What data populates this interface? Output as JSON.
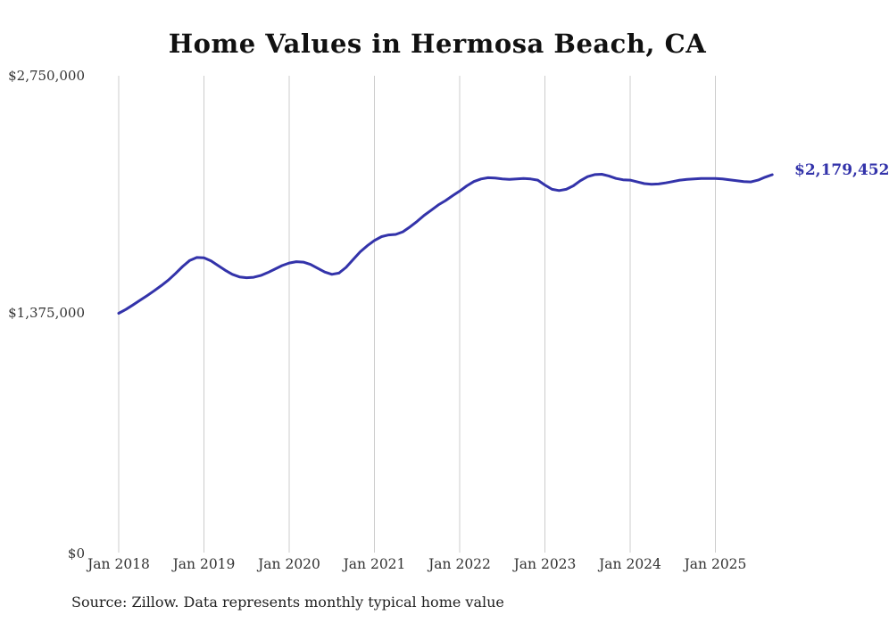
{
  "title": "Home Values in Hermosa Beach, CA",
  "source": "Source: Zillow. Data represents monthly typical home value",
  "end_label": "$2,179,452",
  "colors": {
    "line": "#3333aa",
    "grid": "#cccccc",
    "text": "#333333"
  },
  "y_axis": {
    "labels": [
      "$2,750,000",
      "$1,375,000",
      "$0"
    ],
    "max": 2750000
  },
  "x_axis": {
    "labels": [
      "Jan 2018",
      "Jan 2019",
      "Jan 2020",
      "Jan 2021",
      "Jan 2022",
      "Jan 2023",
      "Jan 2024",
      "Jan 2025"
    ]
  },
  "chart_data": {
    "type": "line",
    "title": "Home Values in Hermosa Beach, CA",
    "series_name": "Monthly typical home value",
    "x_start": "2018-01",
    "x_end": "2025-09",
    "x_interval": "monthly",
    "ylim": [
      0,
      2750000
    ],
    "grid": "vertical-yearly",
    "final_value": 2179452,
    "values": [
      1380000,
      1402000,
      1428000,
      1455000,
      1482000,
      1510000,
      1540000,
      1572000,
      1610000,
      1650000,
      1685000,
      1702000,
      1700000,
      1682000,
      1655000,
      1628000,
      1605000,
      1590000,
      1585000,
      1588000,
      1598000,
      1615000,
      1635000,
      1655000,
      1670000,
      1678000,
      1675000,
      1662000,
      1640000,
      1618000,
      1605000,
      1612000,
      1645000,
      1690000,
      1735000,
      1770000,
      1800000,
      1822000,
      1832000,
      1835000,
      1850000,
      1878000,
      1910000,
      1945000,
      1975000,
      2005000,
      2030000,
      2058000,
      2085000,
      2115000,
      2140000,
      2155000,
      2162000,
      2160000,
      2155000,
      2152000,
      2155000,
      2158000,
      2155000,
      2148000,
      2120000,
      2095000,
      2088000,
      2095000,
      2115000,
      2145000,
      2168000,
      2180000,
      2182000,
      2172000,
      2158000,
      2150000,
      2148000,
      2138000,
      2128000,
      2124000,
      2126000,
      2132000,
      2140000,
      2148000,
      2152000,
      2155000,
      2158000,
      2158000,
      2158000,
      2155000,
      2150000,
      2145000,
      2140000,
      2138000,
      2148000,
      2165000,
      2179452
    ]
  }
}
